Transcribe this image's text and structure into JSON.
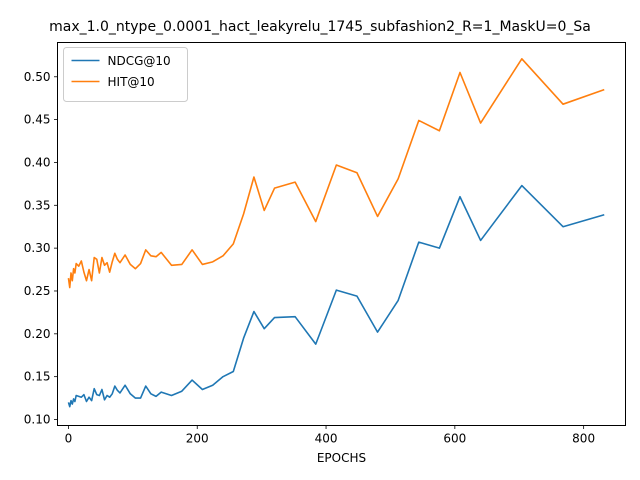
{
  "chart_data": {
    "type": "line",
    "title": "max_1.0_ntype_0.0001_hact_leakyrelu_1745_subfashion2_R=1_MaskU=0_Sa",
    "xlabel": "EPOCHS",
    "ylabel": "",
    "xlim": [
      -17,
      865
    ],
    "ylim": [
      0.093,
      0.54
    ],
    "xticks": [
      0,
      200,
      400,
      600,
      800
    ],
    "xtick_labels": [
      "0",
      "200",
      "400",
      "600",
      "800"
    ],
    "yticks": [
      0.1,
      0.15,
      0.2,
      0.25,
      0.3,
      0.35,
      0.4,
      0.45,
      0.5
    ],
    "ytick_labels": [
      "0.10",
      "0.15",
      "0.20",
      "0.25",
      "0.30",
      "0.35",
      "0.40",
      "0.45",
      "0.50"
    ],
    "grid": false,
    "legend_position": "upper-left",
    "series": [
      {
        "name": "NDCG@10",
        "color": "#1f77b4",
        "x": [
          0,
          2,
          4,
          6,
          8,
          10,
          12,
          16,
          20,
          24,
          28,
          32,
          36,
          40,
          44,
          48,
          52,
          56,
          60,
          64,
          68,
          72,
          76,
          80,
          88,
          96,
          104,
          112,
          120,
          128,
          136,
          144,
          160,
          176,
          192,
          208,
          224,
          240,
          256,
          272,
          288,
          304,
          320,
          352,
          384,
          416,
          448,
          480,
          512,
          544,
          576,
          608,
          640,
          704,
          768,
          832
        ],
        "y": [
          0.12,
          0.115,
          0.122,
          0.118,
          0.124,
          0.121,
          0.128,
          0.127,
          0.126,
          0.129,
          0.121,
          0.126,
          0.122,
          0.136,
          0.129,
          0.128,
          0.135,
          0.123,
          0.128,
          0.126,
          0.13,
          0.139,
          0.134,
          0.131,
          0.14,
          0.13,
          0.125,
          0.125,
          0.139,
          0.13,
          0.127,
          0.132,
          0.128,
          0.133,
          0.146,
          0.135,
          0.14,
          0.15,
          0.156,
          0.195,
          0.226,
          0.206,
          0.219,
          0.22,
          0.188,
          0.251,
          0.244,
          0.202,
          0.239,
          0.307,
          0.3,
          0.36,
          0.309,
          0.373,
          0.325,
          0.339
        ]
      },
      {
        "name": "HIT@10",
        "color": "#ff7f0e",
        "x": [
          0,
          2,
          4,
          6,
          8,
          10,
          12,
          16,
          20,
          24,
          28,
          32,
          36,
          40,
          44,
          48,
          52,
          56,
          60,
          64,
          68,
          72,
          76,
          80,
          88,
          96,
          104,
          112,
          120,
          128,
          136,
          144,
          160,
          176,
          192,
          208,
          224,
          240,
          256,
          272,
          288,
          304,
          320,
          352,
          384,
          416,
          448,
          480,
          512,
          544,
          576,
          608,
          640,
          704,
          768,
          832
        ],
        "y": [
          0.265,
          0.254,
          0.271,
          0.262,
          0.276,
          0.271,
          0.282,
          0.279,
          0.285,
          0.272,
          0.262,
          0.275,
          0.262,
          0.289,
          0.287,
          0.271,
          0.289,
          0.28,
          0.283,
          0.272,
          0.284,
          0.294,
          0.287,
          0.283,
          0.292,
          0.281,
          0.276,
          0.282,
          0.298,
          0.291,
          0.29,
          0.295,
          0.28,
          0.281,
          0.298,
          0.281,
          0.284,
          0.291,
          0.305,
          0.34,
          0.383,
          0.344,
          0.37,
          0.377,
          0.331,
          0.397,
          0.388,
          0.337,
          0.381,
          0.449,
          0.437,
          0.505,
          0.446,
          0.521,
          0.468,
          0.485
        ]
      }
    ]
  }
}
